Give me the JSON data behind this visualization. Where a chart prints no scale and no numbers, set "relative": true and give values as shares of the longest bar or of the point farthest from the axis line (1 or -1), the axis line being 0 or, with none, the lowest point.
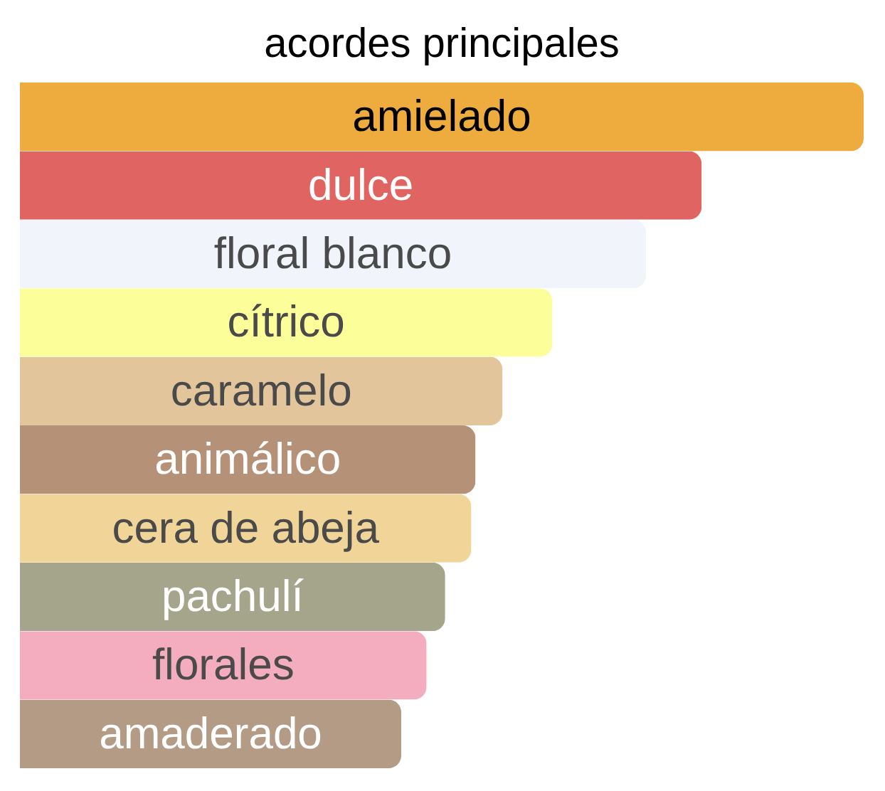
{
  "chart_data": {
    "type": "bar",
    "orientation": "horizontal",
    "relative": true,
    "title": "acordes principales",
    "categories": [
      "amielado",
      "dulce",
      "floral blanco",
      "cítrico",
      "caramelo",
      "animálico",
      "cera de abeja",
      "pachulí",
      "florales",
      "amaderado"
    ],
    "values": [
      1,
      0.808,
      0.742,
      0.631,
      0.572,
      0.54,
      0.535,
      0.504,
      0.482,
      0.452
    ],
    "colors": [
      "#eeab3e",
      "#e06562",
      "#f1f4fb",
      "#fcfe99",
      "#e3c59b",
      "#b59177",
      "#f1d498",
      "#a4a58a",
      "#f4adbe",
      "#b39b86"
    ]
  }
}
